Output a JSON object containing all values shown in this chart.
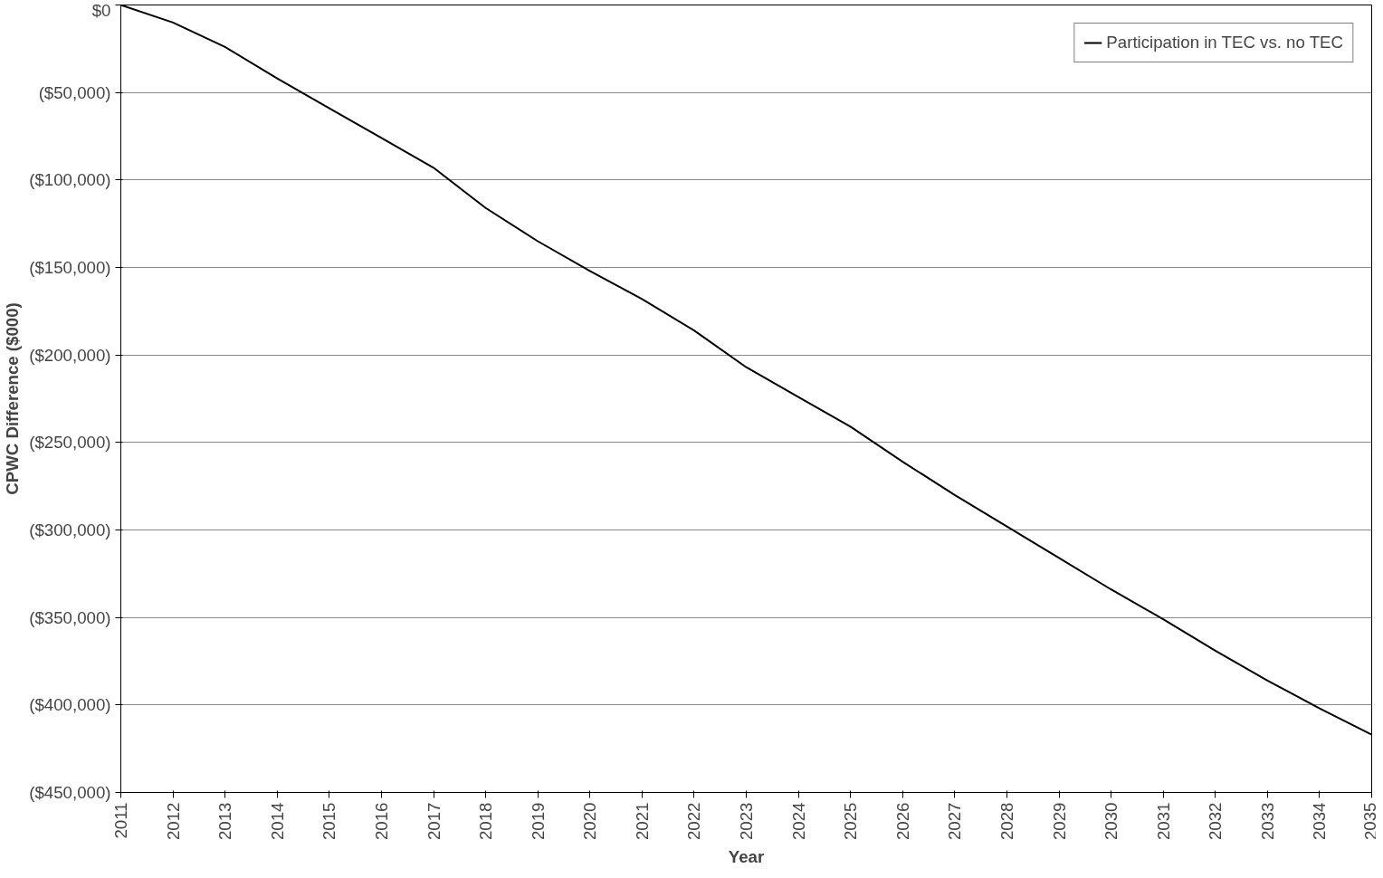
{
  "chart_data": {
    "type": "line",
    "xlabel": "Year",
    "ylabel": "CPWC Difference ($000)",
    "x": [
      2011,
      2012,
      2013,
      2014,
      2015,
      2016,
      2017,
      2018,
      2019,
      2020,
      2021,
      2022,
      2023,
      2024,
      2025,
      2026,
      2027,
      2028,
      2029,
      2030,
      2031,
      2032,
      2033,
      2034,
      2035
    ],
    "series": [
      {
        "name": "Participation in TEC vs. no TEC",
        "color": "#000000",
        "values": [
          0,
          -10000,
          -24000,
          -42000,
          -59000,
          -76000,
          -93000,
          -116000,
          -135000,
          -152000,
          -168000,
          -186000,
          -207000,
          -224000,
          -241000,
          -261000,
          -280000,
          -298000,
          -316000,
          -334000,
          -351000,
          -369000,
          -386000,
          -402000,
          -417000
        ]
      }
    ],
    "xlim": [
      2011,
      2035
    ],
    "xticks": [
      2011,
      2012,
      2013,
      2014,
      2015,
      2016,
      2017,
      2018,
      2019,
      2020,
      2021,
      2022,
      2023,
      2024,
      2025,
      2026,
      2027,
      2028,
      2029,
      2030,
      2031,
      2032,
      2033,
      2034,
      2035
    ],
    "ylim": [
      -450000,
      0
    ],
    "yticks": [
      {
        "value": 0,
        "label": "$0"
      },
      {
        "value": -50000,
        "label": "($50,000)"
      },
      {
        "value": -100000,
        "label": "($100,000)"
      },
      {
        "value": -150000,
        "label": "($150,000)"
      },
      {
        "value": -200000,
        "label": "($200,000)"
      },
      {
        "value": -250000,
        "label": "($250,000)"
      },
      {
        "value": -300000,
        "label": "($300,000)"
      },
      {
        "value": -350000,
        "label": "($350,000)"
      },
      {
        "value": -400000,
        "label": "($400,000)"
      },
      {
        "value": -450000,
        "label": "($450,000)"
      }
    ],
    "grid": "y",
    "legend": "top right",
    "marker": "none",
    "line_style": "solid"
  }
}
